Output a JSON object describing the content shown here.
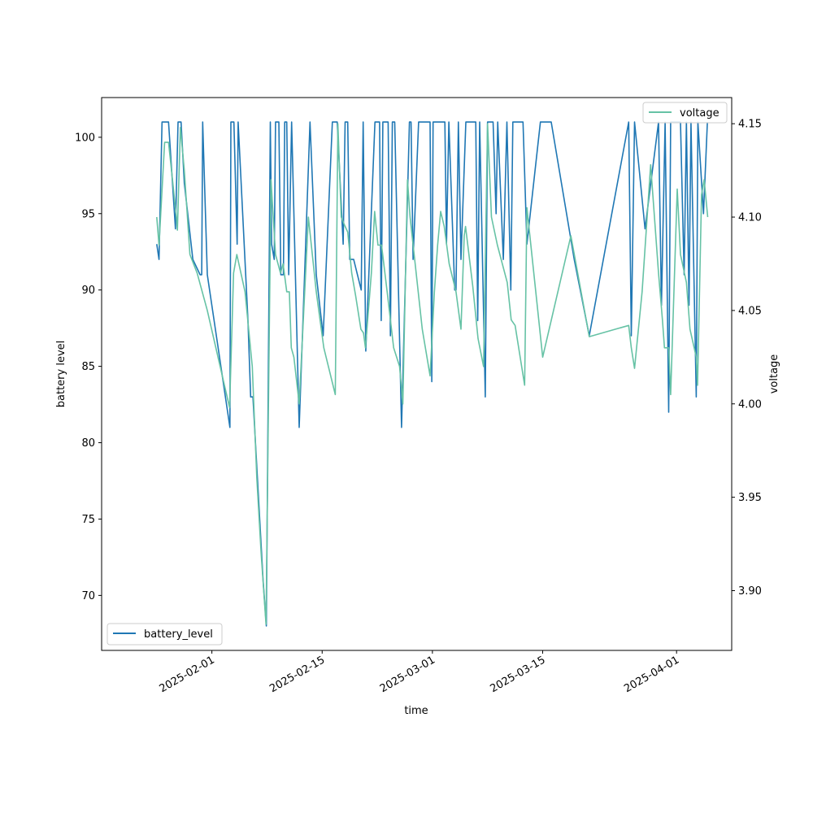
{
  "chart_data": {
    "type": "line",
    "xlabel": "time",
    "ylabel_left": "battery level",
    "ylabel_right": "voltage",
    "xlim": [
      "2025-01-18",
      "2025-04-08"
    ],
    "ylim_left": [
      66.4,
      102.6
    ],
    "ylim_right": [
      3.868,
      4.164
    ],
    "xticks": [
      "2025-02-01",
      "2025-02-15",
      "2025-03-01",
      "2025-03-15",
      "2025-04-01"
    ],
    "yticks_left": [
      70,
      75,
      80,
      85,
      90,
      95,
      100
    ],
    "yticks_right": [
      "3.90",
      "3.95",
      "4.00",
      "4.05",
      "4.10",
      "4.15"
    ],
    "legend_left": {
      "label": "battery_level",
      "placement": "lower-left"
    },
    "legend_right": {
      "label": "voltage",
      "placement": "upper-right"
    },
    "grid": false,
    "colors": {
      "battery_level": "#1f77b4",
      "voltage": "#66c2a5"
    },
    "series": [
      {
        "name": "battery_level",
        "axis": "left",
        "points": [
          [
            "2025-01-25 00:00",
            93
          ],
          [
            "2025-01-25 07:00",
            92
          ],
          [
            "2025-01-25 16:00",
            101
          ],
          [
            "2025-01-26 12:00",
            101
          ],
          [
            "2025-01-27 09:00",
            94
          ],
          [
            "2025-01-27 17:00",
            101
          ],
          [
            "2025-01-28 02:00",
            101
          ],
          [
            "2025-01-28 12:00",
            97
          ],
          [
            "2025-01-29 14:00",
            92
          ],
          [
            "2025-01-30 12:00",
            91
          ],
          [
            "2025-01-30 17:00",
            91
          ],
          [
            "2025-01-30 20:00",
            101
          ],
          [
            "2025-01-31 10:00",
            91
          ],
          [
            "2025-02-03 07:00",
            81
          ],
          [
            "2025-02-03 10:00",
            101
          ],
          [
            "2025-02-03 19:00",
            101
          ],
          [
            "2025-02-04 05:00",
            93
          ],
          [
            "2025-02-04 08:00",
            101
          ],
          [
            "2025-02-05 14:00",
            88
          ],
          [
            "2025-02-05 22:00",
            83
          ],
          [
            "2025-02-06 05:00",
            83
          ],
          [
            "2025-02-07 12:00",
            71
          ],
          [
            "2025-02-07 22:00",
            68
          ],
          [
            "2025-02-08 10:00",
            101
          ],
          [
            "2025-02-08 14:00",
            93
          ],
          [
            "2025-02-08 22:00",
            92
          ],
          [
            "2025-02-09 02:00",
            101
          ],
          [
            "2025-02-09 12:00",
            101
          ],
          [
            "2025-02-09 18:00",
            91
          ],
          [
            "2025-02-10 02:00",
            91
          ],
          [
            "2025-02-10 06:00",
            101
          ],
          [
            "2025-02-10 12:00",
            101
          ],
          [
            "2025-02-10 18:00",
            91
          ],
          [
            "2025-02-11 03:00",
            101
          ],
          [
            "2025-02-12 02:00",
            81
          ],
          [
            "2025-02-13 11:00",
            101
          ],
          [
            "2025-02-14 06:00",
            91
          ],
          [
            "2025-02-15 03:00",
            87
          ],
          [
            "2025-02-16 07:00",
            101
          ],
          [
            "2025-02-16 22:00",
            101
          ],
          [
            "2025-02-17 16:00",
            93
          ],
          [
            "2025-02-17 22:00",
            101
          ],
          [
            "2025-02-18 06:00",
            101
          ],
          [
            "2025-02-18 12:00",
            92
          ],
          [
            "2025-02-19 00:00",
            92
          ],
          [
            "2025-02-19 23:00",
            90
          ],
          [
            "2025-02-20 05:00",
            101
          ],
          [
            "2025-02-20 13:00",
            86
          ],
          [
            "2025-02-21 17:00",
            101
          ],
          [
            "2025-02-22 07:00",
            101
          ],
          [
            "2025-02-22 12:00",
            88
          ],
          [
            "2025-02-22 17:00",
            101
          ],
          [
            "2025-02-23 09:00",
            101
          ],
          [
            "2025-02-23 16:00",
            87
          ],
          [
            "2025-02-23 22:00",
            101
          ],
          [
            "2025-02-24 05:00",
            101
          ],
          [
            "2025-02-25 02:00",
            81
          ],
          [
            "2025-02-26 02:00",
            101
          ],
          [
            "2025-02-26 07:00",
            101
          ],
          [
            "2025-02-26 13:00",
            92
          ],
          [
            "2025-02-27 06:00",
            101
          ],
          [
            "2025-02-28 17:00",
            101
          ],
          [
            "2025-02-28 22:00",
            84
          ],
          [
            "2025-03-01 02:00",
            101
          ],
          [
            "2025-03-02 14:00",
            101
          ],
          [
            "2025-03-02 19:00",
            93
          ],
          [
            "2025-03-03 02:00",
            101
          ],
          [
            "2025-03-03 20:00",
            90
          ],
          [
            "2025-03-04 00:00",
            90
          ],
          [
            "2025-03-04 07:00",
            101
          ],
          [
            "2025-03-04 15:00",
            92
          ],
          [
            "2025-03-05 06:00",
            101
          ],
          [
            "2025-03-06 12:00",
            101
          ],
          [
            "2025-03-06 18:00",
            88
          ],
          [
            "2025-03-07 00:00",
            101
          ],
          [
            "2025-03-07 17:00",
            83
          ],
          [
            "2025-03-08 00:00",
            101
          ],
          [
            "2025-03-08 17:00",
            101
          ],
          [
            "2025-03-09 02:00",
            95
          ],
          [
            "2025-03-09 07:00",
            101
          ],
          [
            "2025-03-10 00:00",
            92
          ],
          [
            "2025-03-10 11:00",
            101
          ],
          [
            "2025-03-10 23:00",
            90
          ],
          [
            "2025-03-11 05:00",
            101
          ],
          [
            "2025-03-12 12:00",
            101
          ],
          [
            "2025-03-13 00:00",
            93
          ],
          [
            "2025-03-14 17:00",
            101
          ],
          [
            "2025-03-16 02:00",
            101
          ],
          [
            "2025-03-19 00:00",
            92
          ],
          [
            "2025-03-20 22:00",
            87
          ],
          [
            "2025-03-25 22:00",
            101
          ],
          [
            "2025-03-26 06:00",
            87
          ],
          [
            "2025-03-26 16:00",
            101
          ],
          [
            "2025-03-28 00:00",
            94
          ],
          [
            "2025-03-29 17:00",
            101
          ],
          [
            "2025-03-30 02:00",
            89
          ],
          [
            "2025-03-30 13:00",
            101
          ],
          [
            "2025-03-31 00:00",
            82
          ],
          [
            "2025-03-31 06:00",
            101
          ],
          [
            "2025-03-31 17:00",
            101
          ],
          [
            "2025-04-01 05:00",
            101
          ],
          [
            "2025-04-01 12:00",
            101
          ],
          [
            "2025-04-01 23:00",
            91
          ],
          [
            "2025-04-02 06:00",
            101
          ],
          [
            "2025-04-02 14:00",
            89
          ],
          [
            "2025-04-02 20:00",
            101
          ],
          [
            "2025-04-03 12:00",
            83
          ],
          [
            "2025-04-03 17:00",
            101
          ],
          [
            "2025-04-04 10:00",
            95
          ],
          [
            "2025-04-04 22:00",
            101
          ]
        ]
      },
      {
        "name": "voltage",
        "axis": "right",
        "points": [
          [
            "2025-01-25 00:00",
            4.1
          ],
          [
            "2025-01-25 07:00",
            4.085
          ],
          [
            "2025-01-26 00:00",
            4.14
          ],
          [
            "2025-01-26 12:00",
            4.14
          ],
          [
            "2025-01-27 12:00",
            4.1
          ],
          [
            "2025-01-27 15:00",
            4.093
          ],
          [
            "2025-01-28 00:00",
            4.148
          ],
          [
            "2025-01-28 12:00",
            4.125
          ],
          [
            "2025-01-29 05:00",
            4.08
          ],
          [
            "2025-01-30 03:00",
            4.07
          ],
          [
            "2025-01-31 10:00",
            4.05
          ],
          [
            "2025-02-03 06:00",
            3.998
          ],
          [
            "2025-02-03 18:00",
            4.07
          ],
          [
            "2025-02-04 04:00",
            4.08
          ],
          [
            "2025-02-05 05:00",
            4.06
          ],
          [
            "2025-02-06 03:00",
            4.02
          ],
          [
            "2025-02-06 17:00",
            3.96
          ],
          [
            "2025-02-07 06:00",
            3.92
          ],
          [
            "2025-02-07 21:00",
            3.882
          ],
          [
            "2025-02-08 12:00",
            4.12
          ],
          [
            "2025-02-09 02:00",
            4.08
          ],
          [
            "2025-02-09 17:00",
            4.07
          ],
          [
            "2025-02-10 01:00",
            4.075
          ],
          [
            "2025-02-10 12:00",
            4.06
          ],
          [
            "2025-02-10 20:00",
            4.06
          ],
          [
            "2025-02-11 02:00",
            4.03
          ],
          [
            "2025-02-11 10:00",
            4.025
          ],
          [
            "2025-02-12 02:00",
            4.0
          ],
          [
            "2025-02-13 06:00",
            4.1
          ],
          [
            "2025-02-14 06:00",
            4.06
          ],
          [
            "2025-02-15 05:00",
            4.03
          ],
          [
            "2025-02-16 16:00",
            4.005
          ],
          [
            "2025-02-17 00:00",
            4.15
          ],
          [
            "2025-02-17 10:00",
            4.1
          ],
          [
            "2025-02-17 22:00",
            4.095
          ],
          [
            "2025-02-18 06:00",
            4.092
          ],
          [
            "2025-02-18 18:00",
            4.07
          ],
          [
            "2025-02-19 06:00",
            4.058
          ],
          [
            "2025-02-19 22:00",
            4.04
          ],
          [
            "2025-02-20 06:00",
            4.038
          ],
          [
            "2025-02-20 12:00",
            4.03
          ],
          [
            "2025-02-21 06:00",
            4.07
          ],
          [
            "2025-02-21 16:00",
            4.103
          ],
          [
            "2025-02-22 02:00",
            4.085
          ],
          [
            "2025-02-22 13:00",
            4.085
          ],
          [
            "2025-02-23 06:00",
            4.06
          ],
          [
            "2025-02-24 02:00",
            4.03
          ],
          [
            "2025-02-24 20:00",
            4.02
          ],
          [
            "2025-02-25 06:00",
            4.0
          ],
          [
            "2025-02-25 20:00",
            4.12
          ],
          [
            "2025-02-26 04:00",
            4.1
          ],
          [
            "2025-02-27 17:00",
            4.04
          ],
          [
            "2025-02-28 17:00",
            4.015
          ],
          [
            "2025-03-01 06:00",
            4.06
          ],
          [
            "2025-03-01 16:00",
            4.085
          ],
          [
            "2025-03-02 01:00",
            4.103
          ],
          [
            "2025-03-02 12:00",
            4.095
          ],
          [
            "2025-03-03 03:00",
            4.075
          ],
          [
            "2025-03-04 00:00",
            4.06
          ],
          [
            "2025-03-04 15:00",
            4.04
          ],
          [
            "2025-03-05 01:00",
            4.09
          ],
          [
            "2025-03-05 05:00",
            4.095
          ],
          [
            "2025-03-06 03:00",
            4.063
          ],
          [
            "2025-03-06 19:00",
            4.035
          ],
          [
            "2025-03-07 12:00",
            4.02
          ],
          [
            "2025-03-08 00:00",
            4.15
          ],
          [
            "2025-03-08 12:00",
            4.1
          ],
          [
            "2025-03-09 06:00",
            4.085
          ],
          [
            "2025-03-10 12:00",
            4.065
          ],
          [
            "2025-03-11 00:00",
            4.045
          ],
          [
            "2025-03-11 12:00",
            4.042
          ],
          [
            "2025-03-12 17:00",
            4.01
          ],
          [
            "2025-03-13 00:00",
            4.105
          ],
          [
            "2025-03-15 00:00",
            4.025
          ],
          [
            "2025-03-18 14:00",
            4.09
          ],
          [
            "2025-03-20 22:00",
            4.036
          ],
          [
            "2025-03-25 22:00",
            4.042
          ],
          [
            "2025-03-26 06:00",
            4.03
          ],
          [
            "2025-03-26 16:00",
            4.019
          ],
          [
            "2025-03-27 15:00",
            4.06
          ],
          [
            "2025-03-28 17:00",
            4.128
          ],
          [
            "2025-03-29 17:00",
            4.07
          ],
          [
            "2025-03-30 05:00",
            4.045
          ],
          [
            "2025-03-30 11:00",
            4.03
          ],
          [
            "2025-03-31 00:00",
            4.03
          ],
          [
            "2025-03-31 06:00",
            4.005
          ],
          [
            "2025-04-01 02:00",
            4.115
          ],
          [
            "2025-04-01 12:00",
            4.08
          ],
          [
            "2025-04-02 06:00",
            4.065
          ],
          [
            "2025-04-02 17:00",
            4.04
          ],
          [
            "2025-04-03 12:00",
            4.025
          ],
          [
            "2025-04-03 16:00",
            4.01
          ],
          [
            "2025-04-04 04:00",
            4.112
          ],
          [
            "2025-04-04 12:00",
            4.12
          ],
          [
            "2025-04-04 23:00",
            4.1
          ]
        ]
      }
    ]
  }
}
